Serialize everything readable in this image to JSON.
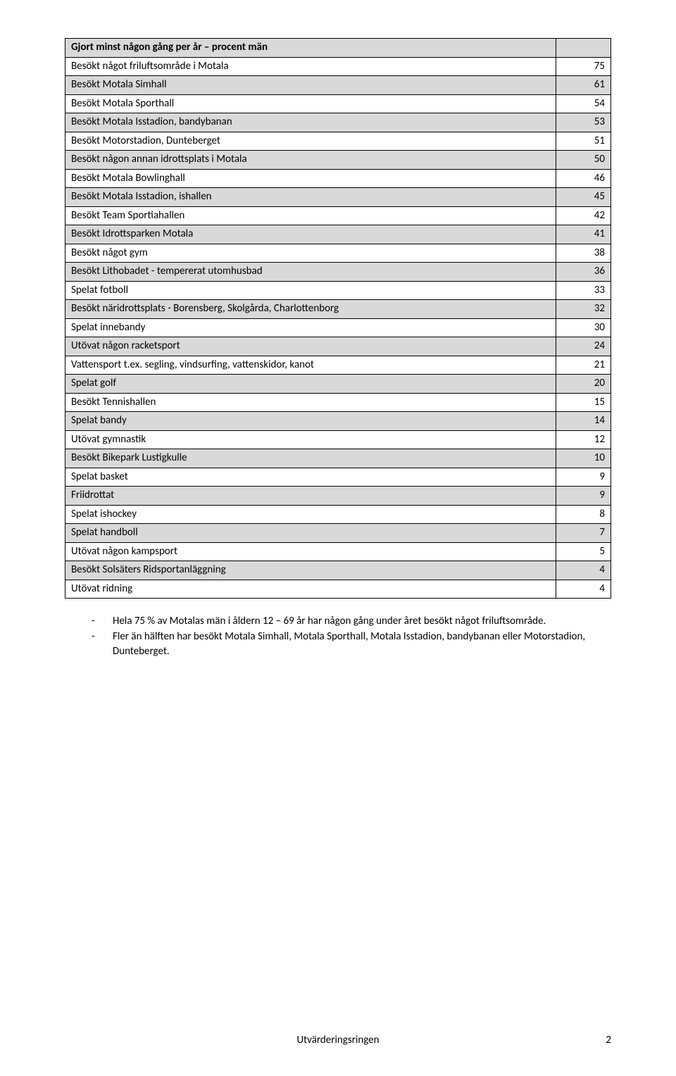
{
  "table": {
    "header": {
      "label": "Gjort minst någon gång per år – procent män",
      "value": ""
    },
    "rows": [
      {
        "label": "Besökt något friluftsområde i Motala",
        "value": "75"
      },
      {
        "label": "Besökt Motala Simhall",
        "value": "61"
      },
      {
        "label": "Besökt Motala Sporthall",
        "value": "54"
      },
      {
        "label": "Besökt Motala Isstadion, bandybanan",
        "value": "53"
      },
      {
        "label": "Besökt Motorstadion, Dunteberget",
        "value": "51"
      },
      {
        "label": "Besökt någon annan idrottsplats i Motala",
        "value": "50"
      },
      {
        "label": "Besökt Motala Bowlinghall",
        "value": "46"
      },
      {
        "label": "Besökt Motala Isstadion, ishallen",
        "value": "45"
      },
      {
        "label": "Besökt Team Sportiahallen",
        "value": "42"
      },
      {
        "label": "Besökt Idrottsparken Motala",
        "value": "41"
      },
      {
        "label": "Besökt något gym",
        "value": "38"
      },
      {
        "label": "Besökt Lithobadet - tempererat utomhusbad",
        "value": "36"
      },
      {
        "label": "Spelat fotboll",
        "value": "33"
      },
      {
        "label": "Besökt näridrottsplats - Borensberg, Skolgårda, Charlottenborg",
        "value": "32"
      },
      {
        "label": "Spelat innebandy",
        "value": "30"
      },
      {
        "label": "Utövat någon racketsport",
        "value": "24"
      },
      {
        "label": "Vattensport t.ex. segling, vindsurfing, vattenskidor, kanot",
        "value": "21"
      },
      {
        "label": "Spelat golf",
        "value": "20"
      },
      {
        "label": "Besökt Tennishallen",
        "value": "15"
      },
      {
        "label": "Spelat bandy",
        "value": "14"
      },
      {
        "label": "Utövat gymnastik",
        "value": "12"
      },
      {
        "label": "Besökt Bikepark Lustigkulle",
        "value": "10"
      },
      {
        "label": "Spelat basket",
        "value": "9"
      },
      {
        "label": "Friidrottat",
        "value": "9"
      },
      {
        "label": "Spelat ishockey",
        "value": "8"
      },
      {
        "label": "Spelat handboll",
        "value": "7"
      },
      {
        "label": "Utövat någon kampsport",
        "value": "5"
      },
      {
        "label": "Besökt Solsäters Ridsportanläggning",
        "value": "4"
      },
      {
        "label": "Utövat ridning",
        "value": "4"
      }
    ]
  },
  "bullets": [
    "Hela 75 % av Motalas män i åldern 12 – 69 år har någon gång under året besökt något friluftsområde.",
    "Fler än hälften har besökt Motala Simhall, Motala Sporthall, Motala Isstadion, bandybanan eller Motorstadion, Dunteberget."
  ],
  "footer": "Utvärderingsringen",
  "page_number": "2"
}
